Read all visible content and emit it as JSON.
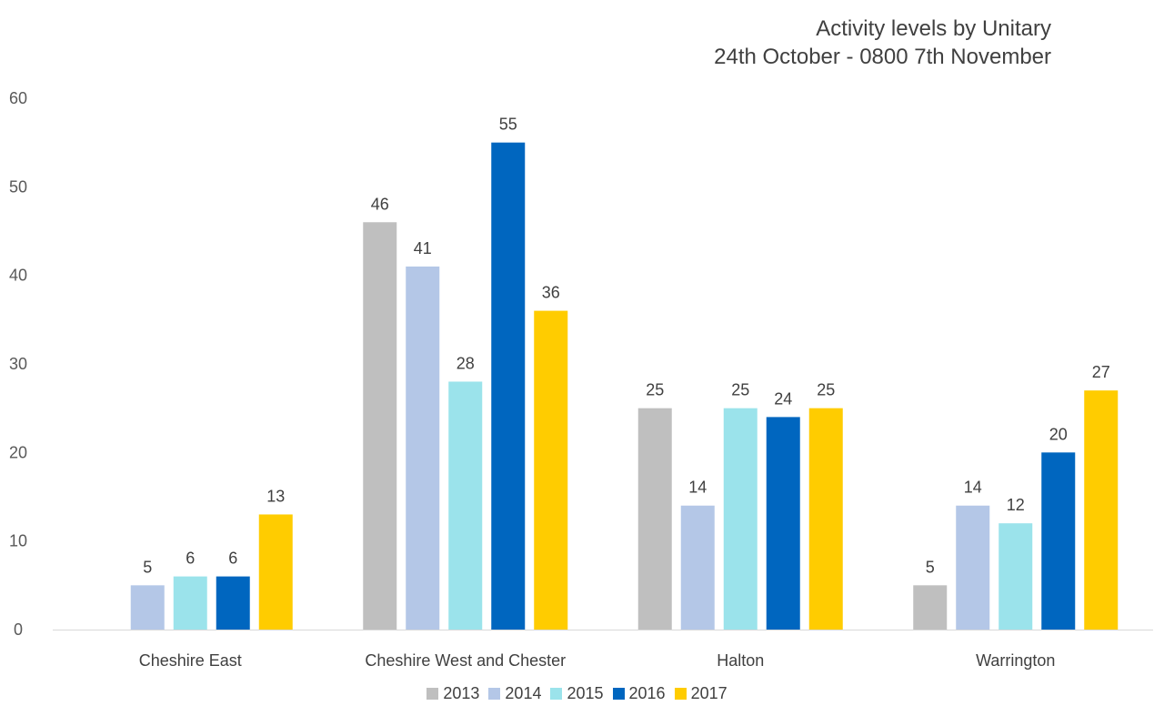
{
  "chart_data": {
    "type": "bar",
    "title": "Activity levels by Unitary",
    "subtitle": "24th October - 0800 7th November",
    "categories": [
      "Cheshire East",
      "Cheshire West and Chester",
      "Halton",
      "Warrington"
    ],
    "series": [
      {
        "name": "2013",
        "color": "#BFBFBF",
        "values": [
          null,
          46,
          25,
          5
        ]
      },
      {
        "name": "2014",
        "color": "#B4C7E7",
        "values": [
          5,
          41,
          14,
          14
        ]
      },
      {
        "name": "2015",
        "color": "#9BE3EB",
        "values": [
          6,
          28,
          25,
          12
        ]
      },
      {
        "name": "2016",
        "color": "#0066BF",
        "values": [
          6,
          55,
          24,
          20
        ]
      },
      {
        "name": "2017",
        "color": "#FFCC00",
        "values": [
          13,
          36,
          25,
          27
        ]
      }
    ],
    "ylim": [
      0,
      60
    ],
    "yticks": [
      0,
      10,
      20,
      30,
      40,
      50,
      60
    ],
    "grid": false,
    "legend_position": "bottom",
    "data_labels": true
  }
}
